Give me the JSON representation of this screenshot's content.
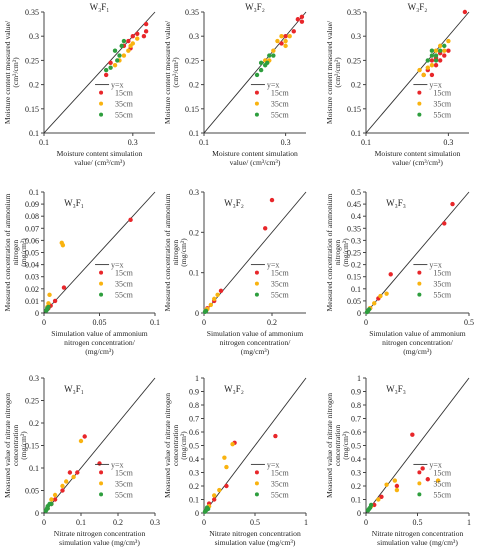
{
  "colors": {
    "15cm": "#e8262a",
    "35cm": "#f9b310",
    "55cm": "#2e9e3e",
    "line": "#333333"
  },
  "legend": {
    "line_label": "y=x",
    "series": [
      "15cm",
      "35cm",
      "55cm"
    ]
  },
  "chart_data": [
    {
      "type": "scatter",
      "title": "W₃F₁",
      "ylabel": "Moisture content measured value/ (cm³/cm³)",
      "xlabel": "Moisture content simulation value/ (cm³/cm³)",
      "xlim": [
        0.1,
        0.35
      ],
      "ylim": [
        0.1,
        0.35
      ],
      "xticks": [
        "0.1",
        "0.3"
      ],
      "yticks": [
        "0.1",
        "0.15",
        "0.2",
        "0.25",
        "0.3",
        "0.35"
      ],
      "series": [
        {
          "name": "15cm",
          "points": [
            [
              0.33,
              0.325
            ],
            [
              0.33,
              0.31
            ],
            [
              0.325,
              0.3
            ],
            [
              0.3,
              0.3
            ],
            [
              0.29,
              0.29
            ],
            [
              0.28,
              0.28
            ],
            [
              0.31,
              0.305
            ],
            [
              0.25,
              0.245
            ],
            [
              0.24,
              0.22
            ],
            [
              0.295,
              0.275
            ]
          ]
        },
        {
          "name": "35cm",
          "points": [
            [
              0.3,
              0.285
            ],
            [
              0.31,
              0.295
            ],
            [
              0.29,
              0.27
            ],
            [
              0.28,
              0.26
            ],
            [
              0.27,
              0.25
            ],
            [
              0.26,
              0.24
            ],
            [
              0.295,
              0.28
            ]
          ]
        },
        {
          "name": "55cm",
          "points": [
            [
              0.275,
              0.28
            ],
            [
              0.28,
              0.29
            ],
            [
              0.27,
              0.26
            ],
            [
              0.265,
              0.25
            ],
            [
              0.25,
              0.235
            ],
            [
              0.24,
              0.23
            ],
            [
              0.26,
              0.27
            ]
          ]
        }
      ]
    },
    {
      "type": "scatter",
      "title": "W₃F₂",
      "ylabel": "Moisture content measured value/ (cm³/cm³)",
      "xlabel": "Moisture content simulation value/ (cm³/cm³)",
      "xlim": [
        0.1,
        0.35
      ],
      "ylim": [
        0.1,
        0.35
      ],
      "xticks": [
        "0.1",
        "0.3"
      ],
      "yticks": [
        "0.1",
        "0.15",
        "0.2",
        "0.25",
        "0.3",
        "0.35"
      ],
      "series": [
        {
          "name": "15cm",
          "points": [
            [
              0.34,
              0.34
            ],
            [
              0.34,
              0.33
            ],
            [
              0.33,
              0.335
            ],
            [
              0.32,
              0.31
            ],
            [
              0.3,
              0.3
            ],
            [
              0.29,
              0.285
            ]
          ]
        },
        {
          "name": "35cm",
          "points": [
            [
              0.29,
              0.3
            ],
            [
              0.28,
              0.29
            ],
            [
              0.3,
              0.28
            ],
            [
              0.27,
              0.27
            ],
            [
              0.26,
              0.25
            ],
            [
              0.25,
              0.25
            ],
            [
              0.31,
              0.3
            ],
            [
              0.3,
              0.29
            ]
          ]
        },
        {
          "name": "55cm",
          "points": [
            [
              0.26,
              0.26
            ],
            [
              0.25,
              0.24
            ],
            [
              0.24,
              0.23
            ],
            [
              0.23,
              0.22
            ],
            [
              0.255,
              0.245
            ],
            [
              0.27,
              0.26
            ],
            [
              0.24,
              0.245
            ]
          ]
        }
      ]
    },
    {
      "type": "scatter",
      "title": "W₃F₂",
      "ylabel": "Moisture content measured value/ (cm³/cm³)",
      "xlabel": "Moisture content simulation value/ (cm³/cm³)",
      "xlim": [
        0.1,
        0.35
      ],
      "ylim": [
        0.1,
        0.35
      ],
      "xticks": [
        "0.1",
        "0.3"
      ],
      "yticks": [
        "0.1",
        "0.15",
        "0.2",
        "0.25",
        "0.3",
        "0.35"
      ],
      "series": [
        {
          "name": "15cm",
          "points": [
            [
              0.34,
              0.35
            ],
            [
              0.3,
              0.27
            ],
            [
              0.29,
              0.26
            ],
            [
              0.28,
              0.265
            ],
            [
              0.27,
              0.255
            ],
            [
              0.26,
              0.25
            ],
            [
              0.27,
              0.24
            ],
            [
              0.25,
              0.23
            ],
            [
              0.28,
              0.25
            ],
            [
              0.26,
              0.22
            ],
            [
              0.24,
              0.22
            ]
          ]
        },
        {
          "name": "35cm",
          "points": [
            [
              0.3,
              0.29
            ],
            [
              0.28,
              0.28
            ],
            [
              0.27,
              0.27
            ],
            [
              0.26,
              0.24
            ],
            [
              0.25,
              0.235
            ],
            [
              0.24,
              0.22
            ],
            [
              0.23,
              0.23
            ],
            [
              0.29,
              0.27
            ]
          ]
        },
        {
          "name": "55cm",
          "points": [
            [
              0.27,
              0.26
            ],
            [
              0.26,
              0.27
            ],
            [
              0.28,
              0.27
            ],
            [
              0.25,
              0.25
            ],
            [
              0.27,
              0.25
            ],
            [
              0.26,
              0.26
            ],
            [
              0.29,
              0.28
            ]
          ]
        }
      ]
    },
    {
      "type": "scatter",
      "title": "W₃F₁",
      "ylabel": "Measured concentration of ammonium nitrogen (mg/cm³)",
      "xlabel": "Simulation value of ammonium nitrogen concentration/ (mg/cm³)",
      "xlim": [
        0,
        0.1
      ],
      "ylim": [
        0,
        0.1
      ],
      "xticks": [
        "0",
        "0.05",
        "0.1"
      ],
      "yticks": [
        "0",
        "0.01",
        "0.02",
        "0.03",
        "0.04",
        "0.05",
        "0.06",
        "0.07",
        "0.08",
        "0.09",
        "0.1"
      ],
      "series": [
        {
          "name": "15cm",
          "points": [
            [
              0.078,
              0.077
            ],
            [
              0.018,
              0.021
            ],
            [
              0.006,
              0.006
            ],
            [
              0.004,
              0.004
            ],
            [
              0.01,
              0.01
            ]
          ]
        },
        {
          "name": "35cm",
          "points": [
            [
              0.016,
              0.058
            ],
            [
              0.017,
              0.056
            ],
            [
              0.005,
              0.015
            ],
            [
              0.004,
              0.008
            ],
            [
              0.003,
              0.005
            ]
          ]
        },
        {
          "name": "55cm",
          "points": [
            [
              0.003,
              0.003
            ],
            [
              0.002,
              0.002
            ],
            [
              0.004,
              0.005
            ],
            [
              0.003,
              0.004
            ]
          ]
        }
      ]
    },
    {
      "type": "scatter",
      "title": "W₃F₂",
      "ylabel": "Measured concentration of ammonium nitrogen (mg/cm³)",
      "xlabel": "Simulation value of ammonium nitrogen concentration/ (mg/cm³)",
      "xlim": [
        0,
        0.3
      ],
      "ylim": [
        0,
        0.3
      ],
      "xticks": [
        "0",
        "0.2"
      ],
      "yticks": [
        "0",
        "0.1",
        "0.2",
        "0.3"
      ],
      "series": [
        {
          "name": "15cm",
          "points": [
            [
              0.2,
              0.28
            ],
            [
              0.18,
              0.21
            ],
            [
              0.05,
              0.055
            ],
            [
              0.03,
              0.03
            ],
            [
              0.01,
              0.012
            ]
          ]
        },
        {
          "name": "35cm",
          "points": [
            [
              0.04,
              0.045
            ],
            [
              0.03,
              0.035
            ],
            [
              0.02,
              0.02
            ],
            [
              0.01,
              0.01
            ],
            [
              0.005,
              0.006
            ]
          ]
        },
        {
          "name": "55cm",
          "points": [
            [
              0.004,
              0.004
            ],
            [
              0.006,
              0.005
            ],
            [
              0.003,
              0.003
            ]
          ]
        }
      ]
    },
    {
      "type": "scatter",
      "title": "W₃F₃",
      "ylabel": "Measured concentration of ammonium nitrogen (mg/cm³)",
      "xlabel": "Simulation value of ammonium nitrogen concentration/ (mg/cm³)",
      "xlim": [
        0,
        0.5
      ],
      "ylim": [
        0,
        0.5
      ],
      "xticks": [
        "0",
        "0.5"
      ],
      "yticks": [
        "0",
        "0.05",
        "0.1",
        "0.15",
        "0.2",
        "0.25",
        "0.3",
        "0.35",
        "0.4",
        "0.45",
        "0.5"
      ],
      "series": [
        {
          "name": "15cm",
          "points": [
            [
              0.42,
              0.45
            ],
            [
              0.38,
              0.37
            ],
            [
              0.12,
              0.16
            ],
            [
              0.06,
              0.06
            ],
            [
              0.02,
              0.02
            ]
          ]
        },
        {
          "name": "35cm",
          "points": [
            [
              0.1,
              0.08
            ],
            [
              0.07,
              0.07
            ],
            [
              0.04,
              0.04
            ],
            [
              0.02,
              0.02
            ],
            [
              0.01,
              0.01
            ]
          ]
        },
        {
          "name": "55cm",
          "points": [
            [
              0.01,
              0.01
            ],
            [
              0.005,
              0.004
            ],
            [
              0.015,
              0.015
            ]
          ]
        }
      ]
    },
    {
      "type": "scatter",
      "title": "W₃F₁",
      "ylabel": "Measured value of nitrate nitrogen concentration (mg/cm³)",
      "xlabel": "Nitrate nitrogen concentration simulation value (mg/cm³)",
      "xlim": [
        0,
        0.3
      ],
      "ylim": [
        0,
        0.3
      ],
      "xticks": [
        "0",
        "0.1",
        "0.2",
        "0.3"
      ],
      "yticks": [
        "0",
        "0.05",
        "0.1",
        "0.15",
        "0.2",
        "0.25",
        "0.3"
      ],
      "series": [
        {
          "name": "15cm",
          "points": [
            [
              0.15,
              0.11
            ],
            [
              0.11,
              0.17
            ],
            [
              0.09,
              0.09
            ],
            [
              0.07,
              0.09
            ],
            [
              0.05,
              0.05
            ],
            [
              0.03,
              0.03
            ],
            [
              0.02,
              0.02
            ]
          ]
        },
        {
          "name": "35cm",
          "points": [
            [
              0.1,
              0.16
            ],
            [
              0.08,
              0.08
            ],
            [
              0.06,
              0.07
            ],
            [
              0.05,
              0.06
            ],
            [
              0.03,
              0.04
            ],
            [
              0.02,
              0.03
            ],
            [
              0.01,
              0.01
            ]
          ]
        },
        {
          "name": "55cm",
          "points": [
            [
              0.01,
              0.01
            ],
            [
              0.005,
              0.005
            ],
            [
              0.015,
              0.02
            ],
            [
              0.01,
              0.015
            ],
            [
              0.02,
              0.02
            ],
            [
              0.008,
              0.01
            ]
          ]
        }
      ]
    },
    {
      "type": "scatter",
      "title": "W₃F₂",
      "ylabel": "Measured value of nitrate nitrogen concentration (mg/cm³)",
      "xlabel": "Nitrate nitrogen concentration simulation value (mg/cm³)",
      "xlim": [
        0,
        1
      ],
      "ylim": [
        0,
        1
      ],
      "xticks": [
        "0",
        "0.5",
        "1"
      ],
      "yticks": [
        "0",
        "0.1",
        "0.2",
        "0.3",
        "0.4",
        "0.5",
        "0.6",
        "0.7",
        "0.8",
        "0.9",
        "1"
      ],
      "series": [
        {
          "name": "15cm",
          "points": [
            [
              0.7,
              0.57
            ],
            [
              0.3,
              0.52
            ],
            [
              0.22,
              0.2
            ],
            [
              0.1,
              0.1
            ],
            [
              0.05,
              0.07
            ]
          ]
        },
        {
          "name": "35cm",
          "points": [
            [
              0.28,
              0.51
            ],
            [
              0.2,
              0.41
            ],
            [
              0.22,
              0.34
            ],
            [
              0.15,
              0.17
            ],
            [
              0.1,
              0.13
            ],
            [
              0.05,
              0.05
            ],
            [
              0.03,
              0.03
            ]
          ]
        },
        {
          "name": "55cm",
          "points": [
            [
              0.02,
              0.02
            ],
            [
              0.03,
              0.04
            ],
            [
              0.01,
              0.01
            ],
            [
              0.04,
              0.03
            ]
          ]
        }
      ]
    },
    {
      "type": "scatter",
      "title": "W₃F₃",
      "ylabel": "Measured value of nitrate nitrogen concentration (mg/cm³)",
      "xlabel": "Nitrate nitrogen concentration simulation value (mg/cm³)",
      "xlim": [
        0,
        1
      ],
      "ylim": [
        0,
        1
      ],
      "xticks": [
        "0",
        "0.5",
        "1"
      ],
      "yticks": [
        "0",
        "0.1",
        "0.2",
        "0.3",
        "0.4",
        "0.5",
        "0.6",
        "0.7",
        "0.8",
        "0.9",
        "1"
      ],
      "series": [
        {
          "name": "15cm",
          "points": [
            [
              0.45,
              0.58
            ],
            [
              0.55,
              0.33
            ],
            [
              0.6,
              0.25
            ],
            [
              0.3,
              0.2
            ],
            [
              0.15,
              0.12
            ],
            [
              0.08,
              0.06
            ]
          ]
        },
        {
          "name": "35cm",
          "points": [
            [
              0.7,
              0.24
            ],
            [
              0.28,
              0.24
            ],
            [
              0.3,
              0.17
            ],
            [
              0.2,
              0.21
            ],
            [
              0.12,
              0.1
            ],
            [
              0.05,
              0.05
            ]
          ]
        },
        {
          "name": "55cm",
          "points": [
            [
              0.03,
              0.03
            ],
            [
              0.02,
              0.02
            ],
            [
              0.05,
              0.06
            ],
            [
              0.04,
              0.04
            ]
          ]
        }
      ]
    }
  ]
}
